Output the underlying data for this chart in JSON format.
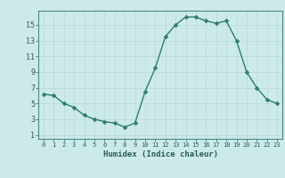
{
  "x": [
    0,
    1,
    2,
    3,
    4,
    5,
    6,
    7,
    8,
    9,
    10,
    11,
    12,
    13,
    14,
    15,
    16,
    17,
    18,
    19,
    20,
    21,
    22,
    23
  ],
  "y": [
    6.2,
    6.0,
    5.0,
    4.5,
    3.5,
    3.0,
    2.7,
    2.5,
    2.0,
    2.5,
    6.5,
    9.5,
    13.5,
    15.0,
    16.0,
    16.0,
    15.5,
    15.2,
    15.5,
    13.0,
    9.0,
    7.0,
    5.5,
    5.0
  ],
  "line_color": "#2e7d6e",
  "marker_color": "#2e7d6e",
  "bg_color": "#cceaea",
  "grid_color": "#b8d8d8",
  "xlabel": "Humidex (Indice chaleur)",
  "xlim": [
    -0.5,
    23.5
  ],
  "ylim": [
    0.5,
    16.8
  ],
  "yticks": [
    1,
    3,
    5,
    7,
    9,
    11,
    13,
    15
  ],
  "xticks": [
    0,
    1,
    2,
    3,
    4,
    5,
    6,
    7,
    8,
    9,
    10,
    11,
    12,
    13,
    14,
    15,
    16,
    17,
    18,
    19,
    20,
    21,
    22,
    23
  ],
  "xtick_labels": [
    "0",
    "1",
    "2",
    "3",
    "4",
    "5",
    "6",
    "7",
    "8",
    "9",
    "10",
    "11",
    "12",
    "13",
    "14",
    "15",
    "16",
    "17",
    "18",
    "19",
    "20",
    "21",
    "22",
    "23"
  ],
  "marker_size": 2.5,
  "line_width": 1.0
}
